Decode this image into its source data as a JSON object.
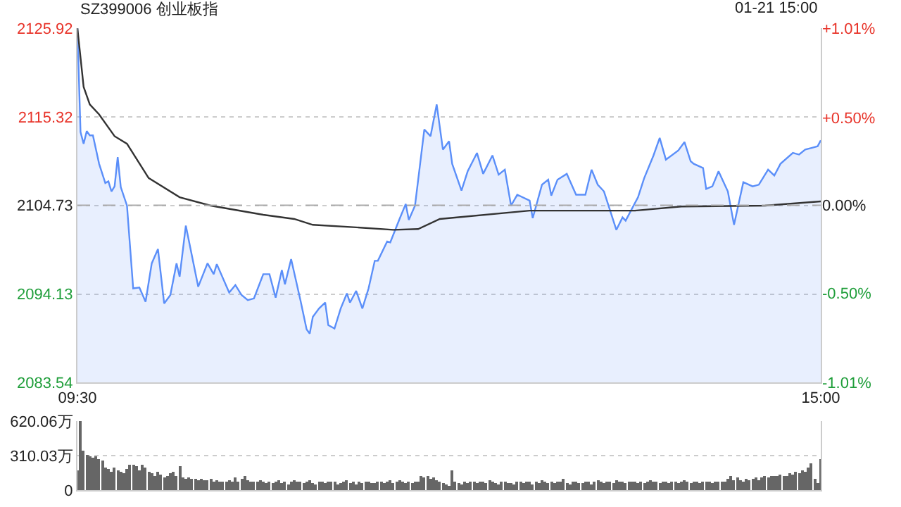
{
  "chart_data": [
    {
      "type": "area",
      "title": "SZ399006 创业板指",
      "annotations": [
        "01-21 15:00"
      ],
      "categories": [
        "09:30",
        null,
        null,
        null,
        null,
        null,
        null,
        null,
        null,
        null,
        null,
        null,
        null,
        null,
        null,
        null,
        null,
        null,
        null,
        null,
        null,
        null,
        null,
        null,
        null,
        null,
        null,
        null,
        null,
        null,
        null,
        null,
        null,
        null,
        null,
        null,
        null,
        null,
        null,
        null,
        null,
        null,
        null,
        null,
        null,
        null,
        null,
        null,
        null,
        null,
        null,
        null,
        null,
        null,
        null,
        null,
        null,
        null,
        null,
        null,
        null,
        null,
        null,
        null,
        null,
        null,
        null,
        null,
        null,
        null,
        null,
        null,
        null,
        null,
        null,
        null,
        null,
        null,
        null,
        null,
        null,
        null,
        null,
        null,
        null,
        null,
        null,
        null,
        null,
        null,
        null,
        null,
        null,
        null,
        null,
        null,
        null,
        null,
        null,
        null,
        null,
        null,
        null,
        null,
        null,
        null,
        null,
        null,
        null,
        null,
        null,
        null,
        null,
        null,
        null,
        null,
        null,
        null,
        null,
        null,
        null,
        null,
        null,
        null,
        null,
        null,
        null,
        null,
        null,
        null,
        null,
        null,
        null,
        null,
        null,
        null,
        null,
        null,
        null,
        null,
        null,
        null,
        null,
        null,
        null,
        null,
        null,
        null,
        null,
        null,
        null,
        null,
        null,
        null,
        null,
        null,
        null,
        null,
        null,
        null,
        null,
        null,
        null,
        null,
        null,
        null,
        null,
        null,
        null,
        null,
        null,
        null,
        null,
        null,
        null,
        null,
        null,
        null,
        null,
        null,
        null,
        null,
        null,
        null,
        null,
        null,
        null,
        null,
        null,
        null,
        null,
        null,
        null,
        null,
        null,
        null,
        null,
        null,
        null,
        null,
        null,
        null,
        null,
        null,
        null,
        null,
        null,
        null,
        null,
        null,
        null,
        null,
        null,
        null,
        null,
        null,
        null,
        null,
        null,
        null,
        null,
        null,
        null,
        null,
        null,
        null,
        null,
        null,
        null,
        null,
        null,
        null,
        null,
        null,
        null,
        null,
        null,
        null,
        null,
        null,
        "15:00"
      ],
      "ylim": [
        2083.54,
        2125.92
      ],
      "yticks": [
        2083.54,
        2094.13,
        2104.73,
        2115.32,
        2125.92
      ],
      "y2lim": [
        -1.01,
        1.01
      ],
      "y2ticks": [
        {
          "value": -1.01,
          "label": "-1.01%"
        },
        {
          "value": -0.5,
          "label": "-0.50%"
        },
        {
          "value": 0,
          "label": "0.00%"
        },
        {
          "value": 0.5,
          "label": "+0.50%"
        },
        {
          "value": 1.01,
          "label": "+1.01%"
        }
      ],
      "ref_lines": [
        {
          "axis": "y",
          "value": 2104.73,
          "color": "#aaaaaa",
          "line_style": "dashed"
        }
      ],
      "grid": "y",
      "marker": "none",
      "line_style": "solid",
      "series": [
        {
          "type": "area",
          "color": "#5b8ff9",
          "values": [
            2125.9,
            2113.5,
            2112.1,
            2113.6,
            2113.1,
            2113.1,
            null,
            2109.7,
            null,
            2107.4,
            2107.6,
            2106.4,
            2107.0,
            2110.5,
            2106.9,
            null,
            2104.7,
            null,
            2094.8,
            null,
            2094.9,
            null,
            2093.2,
            null,
            2097.8,
            null,
            2099.5,
            null,
            2093.0,
            null,
            2094.0,
            null,
            2097.8,
            2096.2,
            null,
            2102.3,
            null,
            null,
            null,
            2095.0,
            null,
            null,
            2097.8,
            null,
            2096.5,
            2097.7,
            null,
            null,
            null,
            2094.3,
            null,
            2095.2,
            null,
            2094.0,
            null,
            2093.4,
            null,
            2093.6,
            null,
            null,
            2096.5,
            null,
            2096.5,
            null,
            2093.7,
            null,
            2097.0,
            2095.3,
            null,
            2098.3,
            null,
            null,
            2093.4,
            null,
            2089.9,
            2089.4,
            2091.4,
            null,
            2092.4,
            null,
            2093.1,
            2090.4,
            null,
            2090.0,
            null,
            2092.4,
            null,
            2094.2,
            2093.1,
            null,
            2094.5,
            null,
            2092.4,
            null,
            2094.8,
            null,
            2098.1,
            2098.1,
            null,
            null,
            2100.4,
            2100.3,
            null,
            null,
            2103.1,
            null,
            2104.9,
            2103.0,
            null,
            2104.7,
            null,
            null,
            2113.8,
            null,
            2113.0,
            null,
            2116.8,
            null,
            2111.4,
            null,
            2112.4,
            2109.7,
            null,
            null,
            2106.5,
            null,
            2108.8,
            null,
            null,
            2111.0,
            null,
            2108.5,
            null,
            null,
            2110.7,
            null,
            2108.4,
            null,
            2109.0,
            null,
            2104.7,
            null,
            2106.0,
            null,
            null,
            null,
            2105.3,
            2103.2,
            null,
            null,
            2107.2,
            null,
            2107.8,
            2105.9,
            null,
            2107.8,
            null,
            null,
            2108.5,
            null,
            null,
            2106.0,
            null,
            null,
            2106.0,
            null,
            2109.0,
            null,
            2107.2,
            null,
            2106.4,
            null,
            null,
            null,
            2101.8,
            null,
            2103.3,
            2102.9,
            null,
            null,
            null,
            2105.7,
            null,
            2108.0,
            null,
            null,
            2110.7,
            null,
            2112.8,
            null,
            2110.2,
            null,
            null,
            null,
            2111.3,
            null,
            2112.3,
            null,
            2110.0,
            2109.7,
            null,
            null,
            2109.2,
            2106.7,
            null,
            2107.0,
            null,
            2108.8,
            null,
            null,
            2106.4,
            null,
            2102.4,
            null,
            null,
            2107.5,
            null,
            null,
            2107.0,
            null,
            2107.2,
            null,
            null,
            2109.0,
            null,
            2108.3,
            null,
            2109.7,
            null,
            null,
            null,
            2111.0,
            null,
            2110.8,
            null,
            2111.4,
            null,
            2111.6,
            null,
            2111.8,
            2112.5
          ]
        },
        {
          "type": "line",
          "color": "#333333",
          "values": [
            2125.9,
            null,
            2118.9,
            null,
            2116.8,
            null,
            null,
            2115.6,
            null,
            null,
            null,
            null,
            2113.0,
            null,
            null,
            null,
            2112.1,
            null,
            null,
            null,
            null,
            null,
            null,
            2108.0,
            null,
            null,
            null,
            null,
            null,
            null,
            null,
            null,
            null,
            2105.7,
            null,
            null,
            null,
            null,
            null,
            null,
            null,
            null,
            null,
            2104.7,
            null,
            null,
            null,
            null,
            null,
            null,
            null,
            null,
            null,
            null,
            null,
            null,
            null,
            null,
            null,
            null,
            2103.6,
            null,
            null,
            null,
            null,
            null,
            null,
            null,
            null,
            null,
            2103.1,
            null,
            null,
            null,
            null,
            null,
            2102.4,
            null,
            null,
            null,
            null,
            null,
            null,
            null,
            null,
            null,
            null,
            null,
            null,
            null,
            2102.1,
            null,
            null,
            null,
            null,
            null,
            null,
            null,
            null,
            null,
            null,
            null,
            2101.8,
            null,
            null,
            null,
            null,
            null,
            null,
            null,
            2101.9,
            null,
            null,
            null,
            null,
            null,
            null,
            2103.1,
            null,
            null,
            2103.2,
            null,
            null,
            null,
            null,
            null,
            null,
            null,
            null,
            null,
            null,
            null,
            null,
            null,
            null,
            null,
            null,
            null,
            null,
            null,
            null,
            null,
            null,
            null,
            null,
            null,
            2104.1,
            null,
            null,
            null,
            null,
            null,
            null,
            null,
            null,
            null,
            null,
            null,
            null,
            null,
            null,
            null,
            null,
            null,
            null,
            null,
            null,
            null,
            null,
            null,
            null,
            null,
            null,
            null,
            null,
            null,
            null,
            null,
            null,
            null,
            2104.1,
            null,
            null,
            null,
            null,
            null,
            null,
            null,
            null,
            null,
            null,
            null,
            null,
            null,
            null,
            2104.6,
            null,
            null,
            null,
            null,
            null,
            null,
            null,
            null,
            null,
            null,
            null,
            null,
            null,
            null,
            null,
            null,
            null,
            null,
            null,
            null,
            null,
            null,
            null,
            null,
            null,
            null,
            2104.7,
            null,
            null,
            null,
            null,
            null,
            null,
            null,
            null,
            null,
            null,
            null,
            null,
            null,
            null,
            null,
            null,
            null,
            2105.2
          ]
        }
      ]
    },
    {
      "type": "bar",
      "color": "#666666",
      "tick_labels": "y",
      "grid": "y",
      "ylim": [
        0,
        620.06
      ],
      "yticks": [
        0,
        {
          "value": 310.03,
          "label": "310.03万"
        },
        {
          "value": 620.06,
          "label": "620.06万"
        }
      ],
      "categories": [
        null,
        null,
        null,
        null,
        null,
        null,
        null,
        null,
        null,
        null,
        null,
        null,
        null,
        null,
        null,
        null,
        null,
        null,
        null,
        null,
        null,
        null,
        null,
        null,
        null,
        null,
        null,
        null,
        null,
        null,
        null,
        null,
        null,
        null,
        null,
        null,
        null,
        null,
        null,
        null,
        null,
        null,
        null,
        null,
        null,
        null,
        null,
        null,
        null,
        null,
        null,
        null,
        null,
        null,
        null,
        null,
        null,
        null,
        null,
        null,
        null,
        null,
        null,
        null,
        null,
        null,
        null,
        null,
        null,
        null,
        null,
        null,
        null,
        null,
        null,
        null,
        null,
        null,
        null,
        null,
        null,
        null,
        null,
        null,
        null,
        null,
        null,
        null,
        null,
        null,
        null,
        null,
        null,
        null,
        null,
        null,
        null,
        null,
        null,
        null,
        null,
        null,
        null,
        null,
        null,
        null,
        null,
        null,
        null,
        null,
        null,
        null,
        null,
        null,
        null,
        null,
        null,
        null,
        null,
        null,
        null,
        null,
        null,
        null,
        null,
        null,
        null,
        null,
        null,
        null,
        null,
        null,
        null,
        null,
        null,
        null,
        null,
        null,
        null,
        null,
        null,
        null,
        null,
        null,
        null,
        null,
        null,
        null,
        null,
        null,
        null,
        null,
        null,
        null,
        null,
        null,
        null,
        null,
        null,
        null,
        null,
        null,
        null,
        null,
        null,
        null,
        null,
        null,
        null,
        null,
        null,
        null,
        null,
        null,
        null,
        null,
        null,
        null,
        null,
        null,
        null,
        null,
        null,
        null,
        null,
        null,
        null,
        null,
        null,
        null,
        null,
        null,
        null,
        null,
        null,
        null,
        null,
        null,
        null,
        null,
        null,
        null,
        null,
        null,
        null,
        null,
        null,
        null,
        null,
        null,
        null,
        null,
        null,
        null,
        null,
        null,
        null,
        null,
        null,
        null,
        null,
        null,
        null,
        null,
        null,
        null,
        null,
        null,
        null,
        null,
        null,
        null,
        null,
        null,
        null,
        null,
        null,
        null,
        null,
        null,
        null
      ],
      "values": [
        180,
        620,
        350,
        320,
        300,
        290,
        300,
        280,
        260,
        200,
        190,
        170,
        200,
        180,
        160,
        150,
        190,
        230,
        230,
        220,
        180,
        230,
        200,
        170,
        150,
        130,
        160,
        140,
        110,
        120,
        150,
        160,
        130,
        220,
        110,
        100,
        110,
        100,
        100,
        90,
        100,
        90,
        90,
        100,
        80,
        90,
        80,
        70,
        80,
        90,
        80,
        110,
        80,
        100,
        120,
        90,
        80,
        70,
        80,
        90,
        70,
        60,
        80,
        60,
        70,
        90,
        60,
        70,
        50,
        80,
        90,
        80,
        70,
        60,
        70,
        90,
        60,
        50,
        70,
        80,
        60,
        70,
        80,
        70,
        50,
        60,
        80,
        90,
        60,
        70,
        50,
        70,
        60,
        70,
        80,
        60,
        60,
        70,
        80,
        60,
        70,
        90,
        60,
        80,
        90,
        70,
        60,
        80,
        60,
        70,
        80,
        120,
        110,
        130,
        100,
        110,
        90,
        70,
        60,
        50,
        40,
        180,
        70,
        60,
        50,
        70,
        60,
        80,
        70,
        60,
        80,
        70,
        60,
        90,
        70,
        60,
        50,
        70,
        80,
        60,
        60,
        50,
        70,
        80,
        60,
        70,
        70,
        50,
        80,
        60,
        90,
        70,
        60,
        70,
        60,
        80,
        70,
        100,
        60,
        50,
        70,
        80,
        60,
        60,
        70,
        80,
        50,
        70,
        90,
        70,
        60,
        80,
        70,
        60,
        90,
        80,
        70,
        60,
        70,
        70,
        80,
        60,
        70,
        60,
        80,
        90,
        70,
        70,
        60,
        70,
        80,
        60,
        70,
        80,
        60,
        70,
        90,
        70,
        60,
        80,
        70,
        60,
        70,
        80,
        70,
        60,
        80,
        70,
        70,
        80,
        100,
        120,
        90,
        110,
        90,
        80,
        100,
        90,
        100,
        110,
        90,
        110,
        120,
        110,
        130,
        120,
        120,
        140,
        130,
        130,
        150,
        140,
        160,
        150,
        180,
        170,
        200,
        240,
        100,
        60,
        280
      ]
    }
  ]
}
